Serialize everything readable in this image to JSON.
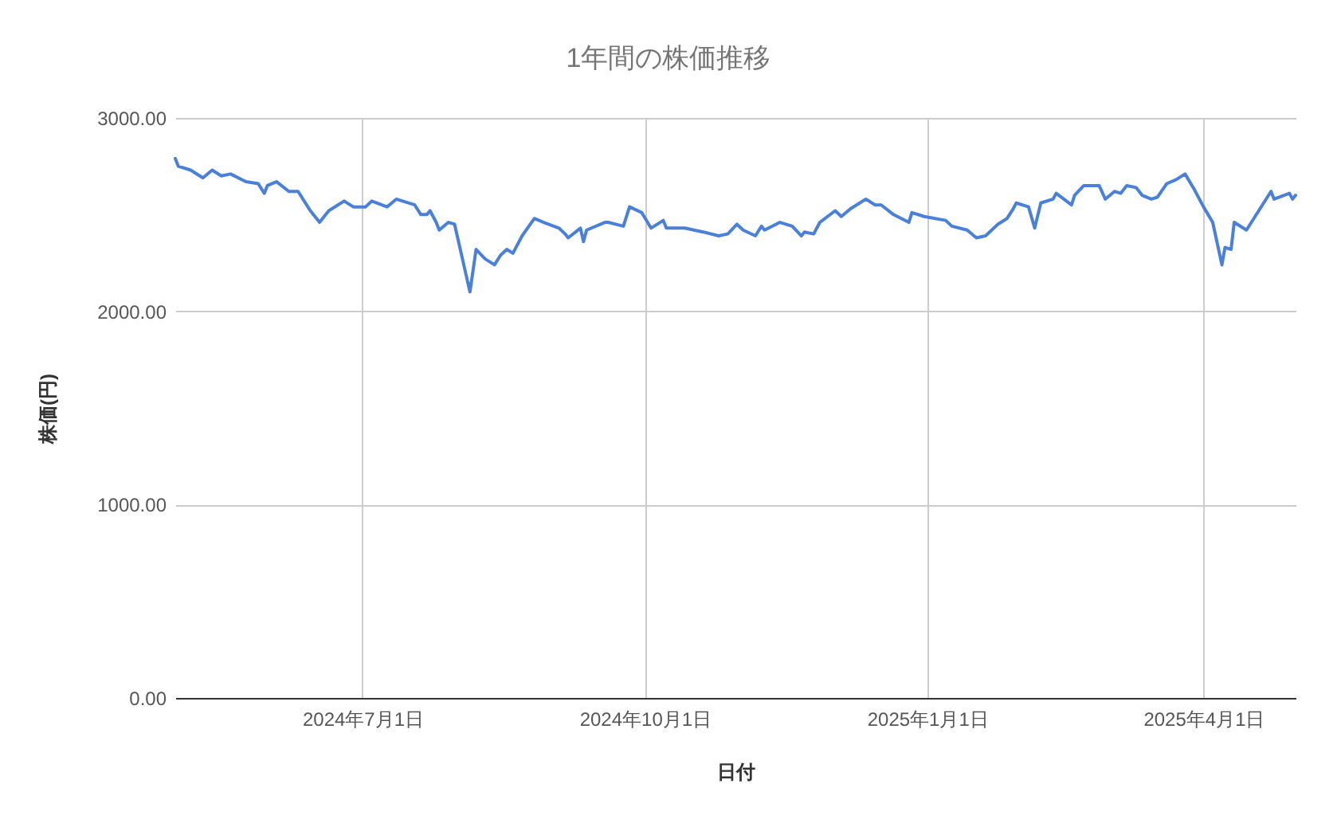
{
  "chart_data": {
    "type": "line",
    "title": "1年間の株価推移",
    "xlabel": "日付",
    "ylabel": "株価(円)",
    "x": [
      "2024-05-01",
      "2024-05-02",
      "2024-05-06",
      "2024-05-10",
      "2024-05-13",
      "2024-05-16",
      "2024-05-19",
      "2024-05-24",
      "2024-05-28",
      "2024-05-30",
      "2024-05-31",
      "2024-06-03",
      "2024-06-07",
      "2024-06-10",
      "2024-06-14",
      "2024-06-17",
      "2024-06-20",
      "2024-06-25",
      "2024-06-28",
      "2024-07-02",
      "2024-07-04",
      "2024-07-09",
      "2024-07-12",
      "2024-07-18",
      "2024-07-20",
      "2024-07-22",
      "2024-07-23",
      "2024-07-25",
      "2024-07-26",
      "2024-07-29",
      "2024-07-31",
      "2024-08-05",
      "2024-08-07",
      "2024-08-10",
      "2024-08-13",
      "2024-08-15",
      "2024-08-17",
      "2024-08-19",
      "2024-08-22",
      "2024-08-26",
      "2024-08-29",
      "2024-09-03",
      "2024-09-05",
      "2024-09-06",
      "2024-09-10",
      "2024-09-11",
      "2024-09-12",
      "2024-09-18",
      "2024-09-19",
      "2024-09-24",
      "2024-09-26",
      "2024-09-30",
      "2024-10-03",
      "2024-10-07",
      "2024-10-08",
      "2024-10-14",
      "2024-10-20",
      "2024-10-25",
      "2024-10-28",
      "2024-10-31",
      "2024-11-02",
      "2024-11-06",
      "2024-11-08",
      "2024-11-09",
      "2024-11-14",
      "2024-11-18",
      "2024-11-21",
      "2024-11-22",
      "2024-11-25",
      "2024-11-27",
      "2024-12-02",
      "2024-12-04",
      "2024-12-07",
      "2024-12-12",
      "2024-12-15",
      "2024-12-17",
      "2024-12-21",
      "2024-12-26",
      "2024-12-27",
      "2024-12-31",
      "2025-01-07",
      "2025-01-09",
      "2025-01-14",
      "2025-01-17",
      "2025-01-20",
      "2025-01-24",
      "2025-01-27",
      "2025-01-29",
      "2025-01-30",
      "2025-02-03",
      "2025-02-05",
      "2025-02-07",
      "2025-02-11",
      "2025-02-12",
      "2025-02-17",
      "2025-02-18",
      "2025-02-21",
      "2025-02-26",
      "2025-02-28",
      "2025-03-03",
      "2025-03-05",
      "2025-03-07",
      "2025-03-10",
      "2025-03-12",
      "2025-03-15",
      "2025-03-17",
      "2025-03-20",
      "2025-03-23",
      "2025-03-26",
      "2025-03-29",
      "2025-04-01",
      "2025-04-04",
      "2025-04-07",
      "2025-04-08",
      "2025-04-10",
      "2025-04-11",
      "2025-04-15",
      "2025-04-19",
      "2025-04-23",
      "2025-04-24",
      "2025-04-29",
      "2025-04-30",
      "2025-05-01"
    ],
    "series": [
      {
        "color": "#4a80d8",
        "values": [
          2790,
          2750,
          2730,
          2690,
          2730,
          2700,
          2710,
          2670,
          2660,
          2610,
          2650,
          2670,
          2620,
          2620,
          2520,
          2460,
          2520,
          2570,
          2540,
          2540,
          2570,
          2540,
          2580,
          2550,
          2500,
          2500,
          2520,
          2460,
          2420,
          2460,
          2450,
          2100,
          2320,
          2270,
          2240,
          2290,
          2320,
          2300,
          2390,
          2480,
          2460,
          2430,
          2400,
          2380,
          2430,
          2360,
          2420,
          2460,
          2460,
          2440,
          2540,
          2510,
          2430,
          2470,
          2430,
          2430,
          2410,
          2390,
          2400,
          2450,
          2420,
          2390,
          2440,
          2420,
          2460,
          2440,
          2390,
          2410,
          2400,
          2460,
          2520,
          2490,
          2530,
          2580,
          2550,
          2550,
          2500,
          2460,
          2510,
          2490,
          2470,
          2440,
          2420,
          2380,
          2390,
          2450,
          2480,
          2530,
          2560,
          2540,
          2430,
          2560,
          2580,
          2610,
          2550,
          2600,
          2650,
          2650,
          2580,
          2620,
          2610,
          2650,
          2640,
          2600,
          2580,
          2590,
          2660,
          2680,
          2710,
          2630,
          2540,
          2460,
          2240,
          2330,
          2320,
          2460,
          2420,
          2520,
          2620,
          2580,
          2610,
          2580,
          2600
        ]
      }
    ],
    "xlim": [
      "2024-05-01",
      "2025-05-01"
    ],
    "xticks": [
      {
        "value": "2024-07-01",
        "label": "2024年7月1日"
      },
      {
        "value": "2024-10-01",
        "label": "2024年10月1日"
      },
      {
        "value": "2025-01-01",
        "label": "2025年1月1日"
      },
      {
        "value": "2025-04-01",
        "label": "2025年4月1日"
      }
    ],
    "ylim": [
      0,
      3000
    ],
    "yticks": [
      {
        "value": 0,
        "label": "0.00"
      },
      {
        "value": 1000,
        "label": "1000.00"
      },
      {
        "value": 2000,
        "label": "2000.00"
      },
      {
        "value": 3000,
        "label": "3000.00"
      }
    ],
    "grid": true,
    "marker": "none",
    "line_style": "solid"
  }
}
